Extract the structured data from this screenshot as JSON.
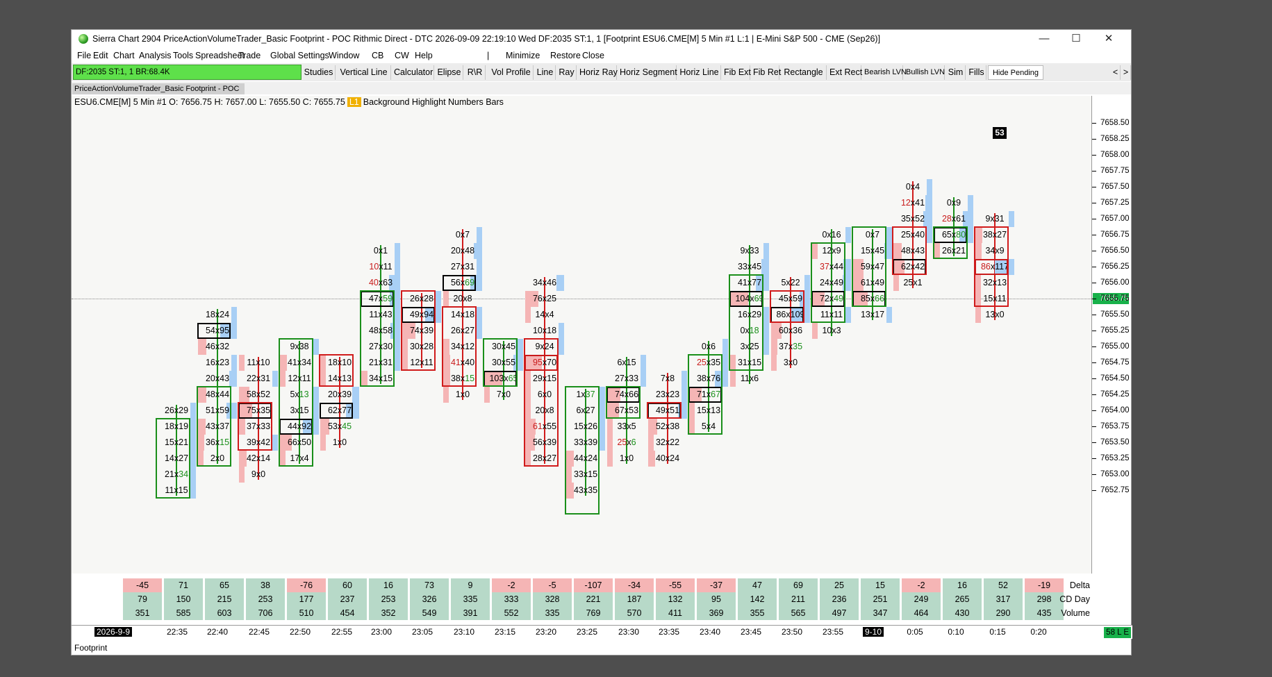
{
  "window": {
    "title": "Sierra Chart 2904 PriceActionVolumeTrader_Basic Footprint - POC Rithmic Direct - DTC 2026-09-09  22:19:10 Wed DF:2035  ST:1, 1 [Footprint ESU6.CME[M]  5 Min  #1 L:1 | E-Mini S&P 500 - CME (Sep26)]",
    "minimize": "—",
    "maximize": "☐",
    "close": "✕"
  },
  "menu": [
    "File",
    "Edit",
    "Chart",
    "Analysis",
    "Tools",
    "Spreadsheet",
    "Trade",
    "Global Settings",
    "Window",
    "CB",
    "CW",
    "Help",
    "|",
    "Minimize",
    "Restore",
    "Close"
  ],
  "dfbox": "DF:2035  ST:1, 1  BR:68.4K",
  "toolbar": [
    "Studies",
    "Vertical Line",
    "Calculator",
    "Elipse",
    "R\\R",
    "Vol Profile",
    "Line",
    "Ray",
    "Horiz Ray",
    "Horiz Segment",
    "Horiz Line",
    "Fib Ext",
    "Fib Ret",
    "Rectangle",
    "Ext Rect",
    "Bearish LVN",
    "Bullish LVN",
    "Sim",
    "Fills",
    "Hide Pending",
    "<",
    ">"
  ],
  "tab": "PriceActionVolumeTrader_Basic Footprint - POC",
  "info": {
    "symbol": "ESU6.CME[M]  5 Min  #1 O: 7656.75 H: 7657.00 L: 7655.50 C: 7655.75",
    "badge": "L1",
    "rest": "Background Highlight  Numbers Bars"
  },
  "price_ticks": [
    "7658.50",
    "7658.25",
    "7658.00",
    "7657.75",
    "7657.50",
    "7657.25",
    "7657.00",
    "7656.75",
    "7656.50",
    "7656.25",
    "7656.00",
    "7655.75",
    "7655.50",
    "7655.25",
    "7655.00",
    "7654.75",
    "7654.50",
    "7654.25",
    "7654.00",
    "7653.75",
    "7653.50",
    "7653.25",
    "7653.00",
    "7652.75"
  ],
  "current_price": "7655.75",
  "badge53": "53",
  "bars": [
    {
      "dir": "up",
      "top": 7653.75,
      "bottom": 7652.75,
      "open": 7653.75,
      "close": 7652.75,
      "poc": null,
      "cells": [
        [
          "26",
          "29",
          7654.0
        ],
        [
          "18",
          "19",
          7653.75
        ],
        [
          "15",
          "21",
          7653.5
        ],
        [
          "14",
          "27",
          7653.25
        ],
        [
          "21",
          "34",
          7653.0,
          "ag"
        ],
        [
          "11",
          "15",
          7652.75
        ]
      ]
    },
    {
      "dir": "up",
      "top": 7654.25,
      "bottom": 7653.25,
      "open": 7653.25,
      "close": 7654.25,
      "poc": 7655.25,
      "cells": [
        [
          "18",
          "24",
          7655.5
        ],
        [
          "54",
          "95",
          7655.25
        ],
        [
          "46",
          "32",
          7655.0
        ],
        [
          "16",
          "23",
          7654.75
        ],
        [
          "20",
          "43",
          7654.5
        ],
        [
          "48",
          "44",
          7654.25
        ],
        [
          "51",
          "59",
          7654.0
        ],
        [
          "43",
          "37",
          7653.75
        ],
        [
          "36",
          "15",
          7653.5,
          "ag"
        ],
        [
          "2",
          "0",
          7653.25
        ]
      ]
    },
    {
      "dir": "dn",
      "top": 7654.0,
      "bottom": 7653.5,
      "open": 7654.0,
      "close": 7653.5,
      "poc": 7654.0,
      "cells": [
        [
          "11",
          "10",
          7654.75
        ],
        [
          "22",
          "31",
          7654.5
        ],
        [
          "58",
          "52",
          7654.25
        ],
        [
          "75",
          "35",
          7654.0
        ],
        [
          "37",
          "33",
          7653.75
        ],
        [
          "39",
          "42",
          7653.5
        ],
        [
          "42",
          "14",
          7653.25
        ],
        [
          "9",
          "0",
          7653.0
        ]
      ]
    },
    {
      "dir": "up",
      "top": 7655.0,
      "bottom": 7653.25,
      "open": 7653.25,
      "close": 7655.0,
      "poc": 7653.75,
      "cells": [
        [
          "9",
          "38",
          7655.0
        ],
        [
          "41",
          "34",
          7654.75
        ],
        [
          "12",
          "11",
          7654.5
        ],
        [
          "5",
          "13",
          7654.25,
          "ag"
        ],
        [
          "3",
          "15",
          7654.0
        ],
        [
          "44",
          "92",
          7653.75
        ],
        [
          "66",
          "50",
          7653.5
        ],
        [
          "17",
          "4",
          7653.25
        ]
      ]
    },
    {
      "dir": "dn",
      "top": 7654.75,
      "bottom": 7654.5,
      "open": 7654.75,
      "close": 7654.5,
      "poc": 7654.0,
      "cells": [
        [
          "18",
          "10",
          7654.75
        ],
        [
          "14",
          "13",
          7654.5
        ],
        [
          "20",
          "39",
          7654.25
        ],
        [
          "62",
          "77",
          7654.0
        ],
        [
          "53",
          "45",
          7653.75,
          "ag"
        ],
        [
          "1",
          "0",
          7653.5
        ]
      ]
    },
    {
      "dir": "up",
      "top": 7655.75,
      "bottom": 7654.5,
      "open": 7654.5,
      "close": 7655.75,
      "poc": 7655.75,
      "cells": [
        [
          "0",
          "1",
          7656.5
        ],
        [
          "10",
          "11",
          7656.25,
          "br"
        ],
        [
          "40",
          "63",
          7656.0,
          "br"
        ],
        [
          "47",
          "59",
          7655.75,
          "ag"
        ],
        [
          "11",
          "43",
          7655.5
        ],
        [
          "48",
          "58",
          7655.25
        ],
        [
          "27",
          "30",
          7655.0
        ],
        [
          "21",
          "31",
          7654.75
        ],
        [
          "34",
          "15",
          7654.5
        ]
      ]
    },
    {
      "dir": "dn",
      "top": 7655.75,
      "bottom": 7654.75,
      "open": 7655.75,
      "close": 7654.75,
      "poc": 7655.5,
      "cells": [
        [
          "26",
          "28",
          7655.75
        ],
        [
          "49",
          "94",
          7655.5
        ],
        [
          "74",
          "39",
          7655.25
        ],
        [
          "30",
          "28",
          7655.0
        ],
        [
          "12",
          "11",
          7654.75
        ]
      ]
    },
    {
      "dir": "dn",
      "top": 7655.5,
      "bottom": 7654.5,
      "open": 7655.5,
      "close": 7654.5,
      "poc": 7656.0,
      "cells": [
        [
          "0",
          "7",
          7656.75
        ],
        [
          "20",
          "48",
          7656.5
        ],
        [
          "27",
          "31",
          7656.25
        ],
        [
          "56",
          "69",
          7656.0,
          "ag"
        ],
        [
          "20",
          "8",
          7655.75
        ],
        [
          "14",
          "18",
          7655.5
        ],
        [
          "26",
          "27",
          7655.25
        ],
        [
          "34",
          "12",
          7655.0
        ],
        [
          "41",
          "40",
          7654.75,
          "br"
        ],
        [
          "38",
          "15",
          7654.5,
          "ag"
        ],
        [
          "1",
          "0",
          7654.25
        ]
      ]
    },
    {
      "dir": "up",
      "top": 7655.0,
      "bottom": 7654.5,
      "open": 7654.5,
      "close": 7655.0,
      "poc": 7654.5,
      "cells": [
        [
          "30",
          "45",
          7655.0
        ],
        [
          "30",
          "55",
          7654.75
        ],
        [
          "103",
          "65",
          7654.5,
          "ag"
        ],
        [
          "7",
          "0",
          7654.25
        ]
      ]
    },
    {
      "dir": "dn",
      "top": 7655.0,
      "bottom": 7653.25,
      "open": 7655.0,
      "close": 7653.25,
      "poc": 7654.75,
      "cells": [
        [
          "34",
          "46",
          7656.0
        ],
        [
          "76",
          "25",
          7655.75
        ],
        [
          "14",
          "4",
          7655.5
        ],
        [
          "10",
          "18",
          7655.25
        ],
        [
          "9",
          "24",
          7655.0
        ],
        [
          "95",
          "70",
          7654.75,
          "br"
        ],
        [
          "29",
          "15",
          7654.5
        ],
        [
          "6",
          "0",
          7654.25
        ],
        [
          "20",
          "8",
          7654.0
        ],
        [
          "61",
          "55",
          7653.75,
          "br"
        ],
        [
          "56",
          "39",
          7653.5
        ],
        [
          "28",
          "27",
          7653.25
        ]
      ]
    },
    {
      "dir": "up",
      "top": 7654.25,
      "bottom": 7652.5,
      "open": 7652.5,
      "close": 7654.25,
      "poc": null,
      "cells": [
        [
          "1",
          "37",
          7654.25,
          "ag"
        ],
        [
          "6",
          "27",
          7654.0
        ],
        [
          "15",
          "26",
          7653.75
        ],
        [
          "33",
          "39",
          7653.5
        ],
        [
          "44",
          "24",
          7653.25
        ],
        [
          "33",
          "15",
          7653.0
        ],
        [
          "43",
          "35",
          7652.75
        ]
      ]
    },
    {
      "dir": "up",
      "top": 7654.25,
      "bottom": 7654.0,
      "open": 7654.0,
      "close": 7654.25,
      "poc": 7654.25,
      "cells": [
        [
          "6",
          "15",
          7654.75
        ],
        [
          "27",
          "33",
          7654.5
        ],
        [
          "74",
          "66",
          7654.25
        ],
        [
          "67",
          "53",
          7654.0
        ],
        [
          "33",
          "5",
          7653.75
        ],
        [
          "25",
          "6",
          7653.5,
          "mix"
        ],
        [
          "1",
          "0",
          7653.25
        ]
      ]
    },
    {
      "dir": "dn",
      "top": 7654.0,
      "bottom": 7654.0,
      "open": 7654.0,
      "close": 7654.0,
      "poc": 7654.0,
      "cells": [
        [
          "7",
          "8",
          7654.5
        ],
        [
          "23",
          "23",
          7654.25
        ],
        [
          "49",
          "51",
          7654.0
        ],
        [
          "52",
          "38",
          7653.75
        ],
        [
          "32",
          "22",
          7653.5
        ],
        [
          "40",
          "24",
          7653.25
        ]
      ]
    },
    {
      "dir": "up",
      "top": 7654.75,
      "bottom": 7653.75,
      "open": 7653.75,
      "close": 7654.75,
      "poc": 7654.25,
      "cells": [
        [
          "0",
          "6",
          7655.0
        ],
        [
          "25",
          "35",
          7654.75,
          "br"
        ],
        [
          "38",
          "76",
          7654.5
        ],
        [
          "71",
          "67",
          7654.25,
          "ag"
        ],
        [
          "15",
          "13",
          7654.0
        ],
        [
          "5",
          "4",
          7653.75
        ]
      ]
    },
    {
      "dir": "up",
      "top": 7656.0,
      "bottom": 7654.75,
      "open": 7654.75,
      "close": 7656.0,
      "poc": 7655.75,
      "cells": [
        [
          "9",
          "33",
          7656.5
        ],
        [
          "33",
          "45",
          7656.25
        ],
        [
          "41",
          "77",
          7656.0
        ],
        [
          "104",
          "69",
          7655.75,
          "ag"
        ],
        [
          "16",
          "29",
          7655.5
        ],
        [
          "0",
          "18",
          7655.25,
          "ag"
        ],
        [
          "3",
          "25",
          7655.0
        ],
        [
          "31",
          "15",
          7654.75
        ],
        [
          "11",
          "6",
          7654.5
        ]
      ]
    },
    {
      "dir": "dn",
      "top": 7655.75,
      "bottom": 7655.5,
      "open": 7655.75,
      "close": 7655.5,
      "poc": 7655.5,
      "cells": [
        [
          "5",
          "22",
          7656.0
        ],
        [
          "45",
          "59",
          7655.75
        ],
        [
          "86",
          "109",
          7655.5
        ],
        [
          "60",
          "36",
          7655.25
        ],
        [
          "37",
          "35",
          7655.0,
          "ag"
        ],
        [
          "3",
          "0",
          7654.75
        ]
      ]
    },
    {
      "dir": "up",
      "top": 7656.5,
      "bottom": 7655.5,
      "open": 7655.5,
      "close": 7656.5,
      "poc": 7655.75,
      "cells": [
        [
          "0",
          "16",
          7656.75
        ],
        [
          "12",
          "9",
          7656.5
        ],
        [
          "37",
          "44",
          7656.25,
          "br"
        ],
        [
          "24",
          "49",
          7656.0
        ],
        [
          "72",
          "49",
          7655.75,
          "ag"
        ],
        [
          "11",
          "11",
          7655.5
        ],
        [
          "10",
          "3",
          7655.25
        ]
      ]
    },
    {
      "dir": "up",
      "top": 7656.75,
      "bottom": 7655.75,
      "open": 7655.75,
      "close": 7656.75,
      "poc": 7655.75,
      "cells": [
        [
          "0",
          "7",
          7656.75
        ],
        [
          "15",
          "45",
          7656.5
        ],
        [
          "59",
          "47",
          7656.25
        ],
        [
          "61",
          "49",
          7656.0
        ],
        [
          "85",
          "66",
          7655.75,
          "ag"
        ],
        [
          "13",
          "17",
          7655.5
        ]
      ]
    },
    {
      "dir": "dn",
      "top": 7656.75,
      "bottom": 7656.25,
      "open": 7656.75,
      "close": 7656.25,
      "poc": 7656.25,
      "cells": [
        [
          "0",
          "4",
          7657.5
        ],
        [
          "12",
          "41",
          7657.25,
          "br"
        ],
        [
          "35",
          "52",
          7657.0
        ],
        [
          "25",
          "40",
          7656.75
        ],
        [
          "48",
          "43",
          7656.5
        ],
        [
          "62",
          "42",
          7656.25
        ],
        [
          "25",
          "1",
          7656.0
        ]
      ]
    },
    {
      "dir": "up",
      "top": 7656.75,
      "bottom": 7656.5,
      "open": 7656.5,
      "close": 7656.75,
      "poc": 7656.75,
      "cells": [
        [
          "0",
          "9",
          7657.25
        ],
        [
          "28",
          "61",
          7657.0,
          "br"
        ],
        [
          "65",
          "80",
          7656.75,
          "ag"
        ],
        [
          "26",
          "21",
          7656.5
        ]
      ]
    },
    {
      "dir": "dn",
      "top": 7656.75,
      "bottom": 7655.75,
      "open": 7656.75,
      "close": 7655.75,
      "poc": 7656.25,
      "cells": [
        [
          "9",
          "31",
          7657.0
        ],
        [
          "38",
          "27",
          7656.75
        ],
        [
          "34",
          "9",
          7656.5
        ],
        [
          "86",
          "117",
          7656.25,
          "br"
        ],
        [
          "32",
          "13",
          7656.0
        ],
        [
          "15",
          "11",
          7655.75
        ],
        [
          "13",
          "0",
          7655.5
        ]
      ]
    }
  ],
  "stats": {
    "labels": [
      "Delta",
      "CD Day",
      "Volume"
    ],
    "delta": [
      "-45",
      "71",
      "65",
      "38",
      "-76",
      "60",
      "16",
      "73",
      "9",
      "-2",
      "-5",
      "-107",
      "-34",
      "-55",
      "-37",
      "47",
      "69",
      "25",
      "15",
      "-2",
      "16",
      "52",
      "-19"
    ],
    "cd": [
      "79",
      "150",
      "215",
      "253",
      "177",
      "237",
      "253",
      "326",
      "335",
      "333",
      "328",
      "221",
      "187",
      "132",
      "95",
      "142",
      "211",
      "236",
      "251",
      "249",
      "265",
      "317",
      "298"
    ],
    "vol": [
      "351",
      "585",
      "603",
      "706",
      "510",
      "454",
      "352",
      "549",
      "391",
      "552",
      "335",
      "769",
      "570",
      "411",
      "369",
      "355",
      "565",
      "497",
      "347",
      "464",
      "430",
      "290",
      "435"
    ]
  },
  "time_labels": [
    "2026-9-9",
    "22:35",
    "22:40",
    "22:45",
    "22:50",
    "22:55",
    "23:00",
    "23:05",
    "23:10",
    "23:15",
    "23:20",
    "23:25",
    "23:30",
    "23:35",
    "23:40",
    "23:45",
    "23:50",
    "23:55",
    "9-10",
    "0:05",
    "0:10",
    "0:15",
    "0:20"
  ],
  "status": "58 L E",
  "footer": "Footprint",
  "colors": {
    "up": "#1a8f1a",
    "down": "#d01b1b",
    "bid": "#f5b5b5",
    "ask": "#a8cff5",
    "poc": "#000000"
  }
}
